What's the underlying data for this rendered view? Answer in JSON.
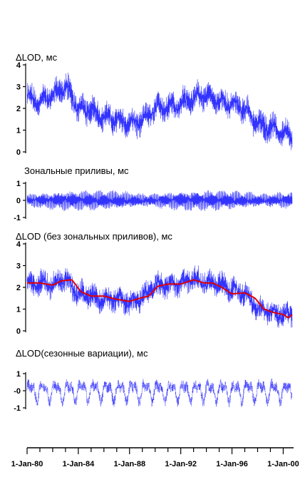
{
  "chart_data": [
    {
      "type": "line",
      "title": "ΔLOD, мс",
      "ylim": [
        0,
        4
      ],
      "yticks": [
        "0",
        "1",
        "2",
        "3",
        "4"
      ],
      "series": [
        {
          "color": "#3333ff",
          "style": "thin-noisy",
          "x": [
            1980.0,
            1981.0,
            1982.0,
            1983.0,
            1984.0,
            1985.0,
            1986.0,
            1987.0,
            1988.0,
            1989.0,
            1990.0,
            1991.0,
            1992.0,
            1993.0,
            1994.0,
            1995.0,
            1996.0,
            1997.0,
            1998.0,
            1999.0,
            2000.0,
            2000.7
          ],
          "y": [
            2.5,
            2.3,
            2.6,
            3.0,
            2.0,
            1.9,
            1.6,
            1.5,
            1.3,
            1.4,
            2.0,
            2.1,
            2.2,
            2.5,
            2.6,
            2.3,
            2.2,
            2.0,
            1.3,
            1.1,
            0.9,
            0.6
          ],
          "amplitude": 0.65
        }
      ]
    },
    {
      "type": "line",
      "title": "Зональные приливы, мс",
      "ylim": [
        -1,
        1
      ],
      "yticks": [
        "-1",
        "0",
        "1"
      ],
      "series": [
        {
          "color": "#3333ff",
          "style": "thin-oscillation",
          "x": [
            1980.0,
            1984.0,
            1988.0,
            1992.0,
            1996.0,
            2000.7
          ],
          "y": [
            0,
            0,
            0,
            0,
            0,
            0
          ],
          "amplitude": 0.55
        }
      ]
    },
    {
      "type": "line",
      "title": "ΔLOD (без зональных приливов), мс",
      "ylim": [
        0,
        4
      ],
      "yticks": [
        "0",
        "1",
        "2",
        "3",
        "4"
      ],
      "series": [
        {
          "color": "#3333ff",
          "style": "thin-noisy",
          "x": [
            1980.0,
            1981.0,
            1982.0,
            1983.0,
            1984.0,
            1985.0,
            1986.0,
            1987.0,
            1988.0,
            1989.0,
            1990.0,
            1991.0,
            1992.0,
            1993.0,
            1994.0,
            1995.0,
            1996.0,
            1997.0,
            1998.0,
            1999.0,
            2000.0,
            2000.7
          ],
          "y": [
            2.2,
            2.2,
            2.1,
            2.4,
            1.7,
            1.6,
            1.4,
            1.5,
            1.3,
            1.5,
            2.1,
            2.1,
            2.2,
            2.4,
            2.2,
            2.2,
            1.9,
            1.7,
            1.0,
            0.9,
            0.7,
            0.8
          ],
          "amplitude": 0.55
        },
        {
          "color": "#e00000",
          "style": "thick-smooth",
          "x": [
            1980.0,
            1981.0,
            1982.0,
            1982.7,
            1983.5,
            1984.2,
            1985.0,
            1986.0,
            1987.0,
            1988.0,
            1988.8,
            1989.5,
            1990.2,
            1991.0,
            1992.0,
            1993.0,
            1993.8,
            1994.5,
            1995.2,
            1996.0,
            1997.0,
            1997.8,
            1998.5,
            1999.2,
            2000.0,
            2000.4,
            2000.7
          ],
          "y": [
            2.2,
            2.2,
            2.1,
            2.3,
            2.35,
            1.8,
            1.6,
            1.6,
            1.45,
            1.35,
            1.5,
            1.6,
            2.05,
            2.15,
            2.15,
            2.35,
            2.2,
            2.2,
            2.0,
            1.7,
            1.75,
            1.5,
            1.0,
            0.85,
            0.75,
            0.6,
            0.75
          ]
        }
      ]
    },
    {
      "type": "line",
      "title": "ΔLOD(сезонные вариации), мс",
      "ylim": [
        -1,
        1
      ],
      "yticks": [
        "-1",
        "-0",
        "1"
      ],
      "series": [
        {
          "color": "#3333ff",
          "style": "dotted-seasonal",
          "x": [
            1980.0,
            1984.0,
            1988.0,
            1992.0,
            1996.0,
            2000.7
          ],
          "y": [
            0,
            0,
            0,
            0,
            0,
            0
          ],
          "amplitude": 0.75
        }
      ]
    }
  ],
  "x_axis": {
    "xlim": [
      1980.0,
      2000.7
    ],
    "tick_labels": [
      "1-Jan-80",
      "1-Jan-84",
      "1-Jan-88",
      "1-Jan-92",
      "1-Jan-96",
      "1-Jan-00"
    ],
    "major_ticks": [
      1980,
      1984,
      1988,
      1992,
      1996,
      2000
    ],
    "minor_ticks_per_year": 1
  }
}
